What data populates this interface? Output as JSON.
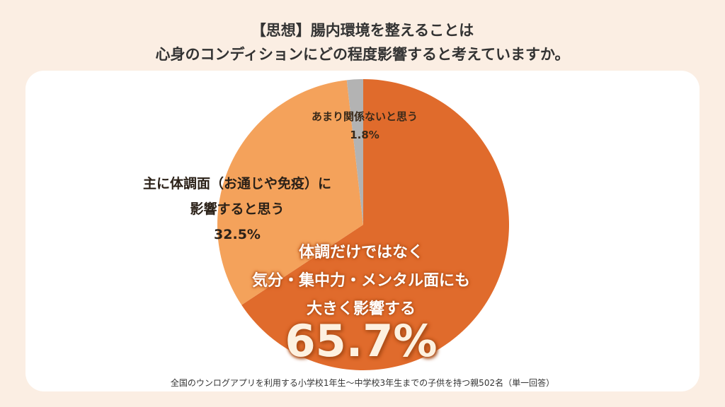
{
  "title": {
    "line1": "【思想】腸内環境を整えることは",
    "line2": "心身のコンディションにどの程度影響すると考えていますか。"
  },
  "chart_data": {
    "type": "pie",
    "title": "【思想】腸内環境を整えることは 心身のコンディションにどの程度影響すると考えていますか。",
    "slices": [
      {
        "label_lines": [
          "体調だけではなく",
          "気分・集中力・メンタル面にも",
          "大きく影響する"
        ],
        "value": 65.7,
        "display": "65.7%",
        "color": "#e06b2c"
      },
      {
        "label_lines": [
          "主に体調面（お通じや免疫）に",
          "影響すると思う"
        ],
        "value": 32.5,
        "display": "32.5%",
        "color": "#f4a25b"
      },
      {
        "label_lines": [
          "あまり関係ないと思う"
        ],
        "value": 1.8,
        "display": "1.8%",
        "color": "#b3b3b3"
      }
    ]
  },
  "footnote": "全国のウンログアプリを利用する小学校1年生〜中学校3年生までの子供を持つ親502名（単一回答）"
}
